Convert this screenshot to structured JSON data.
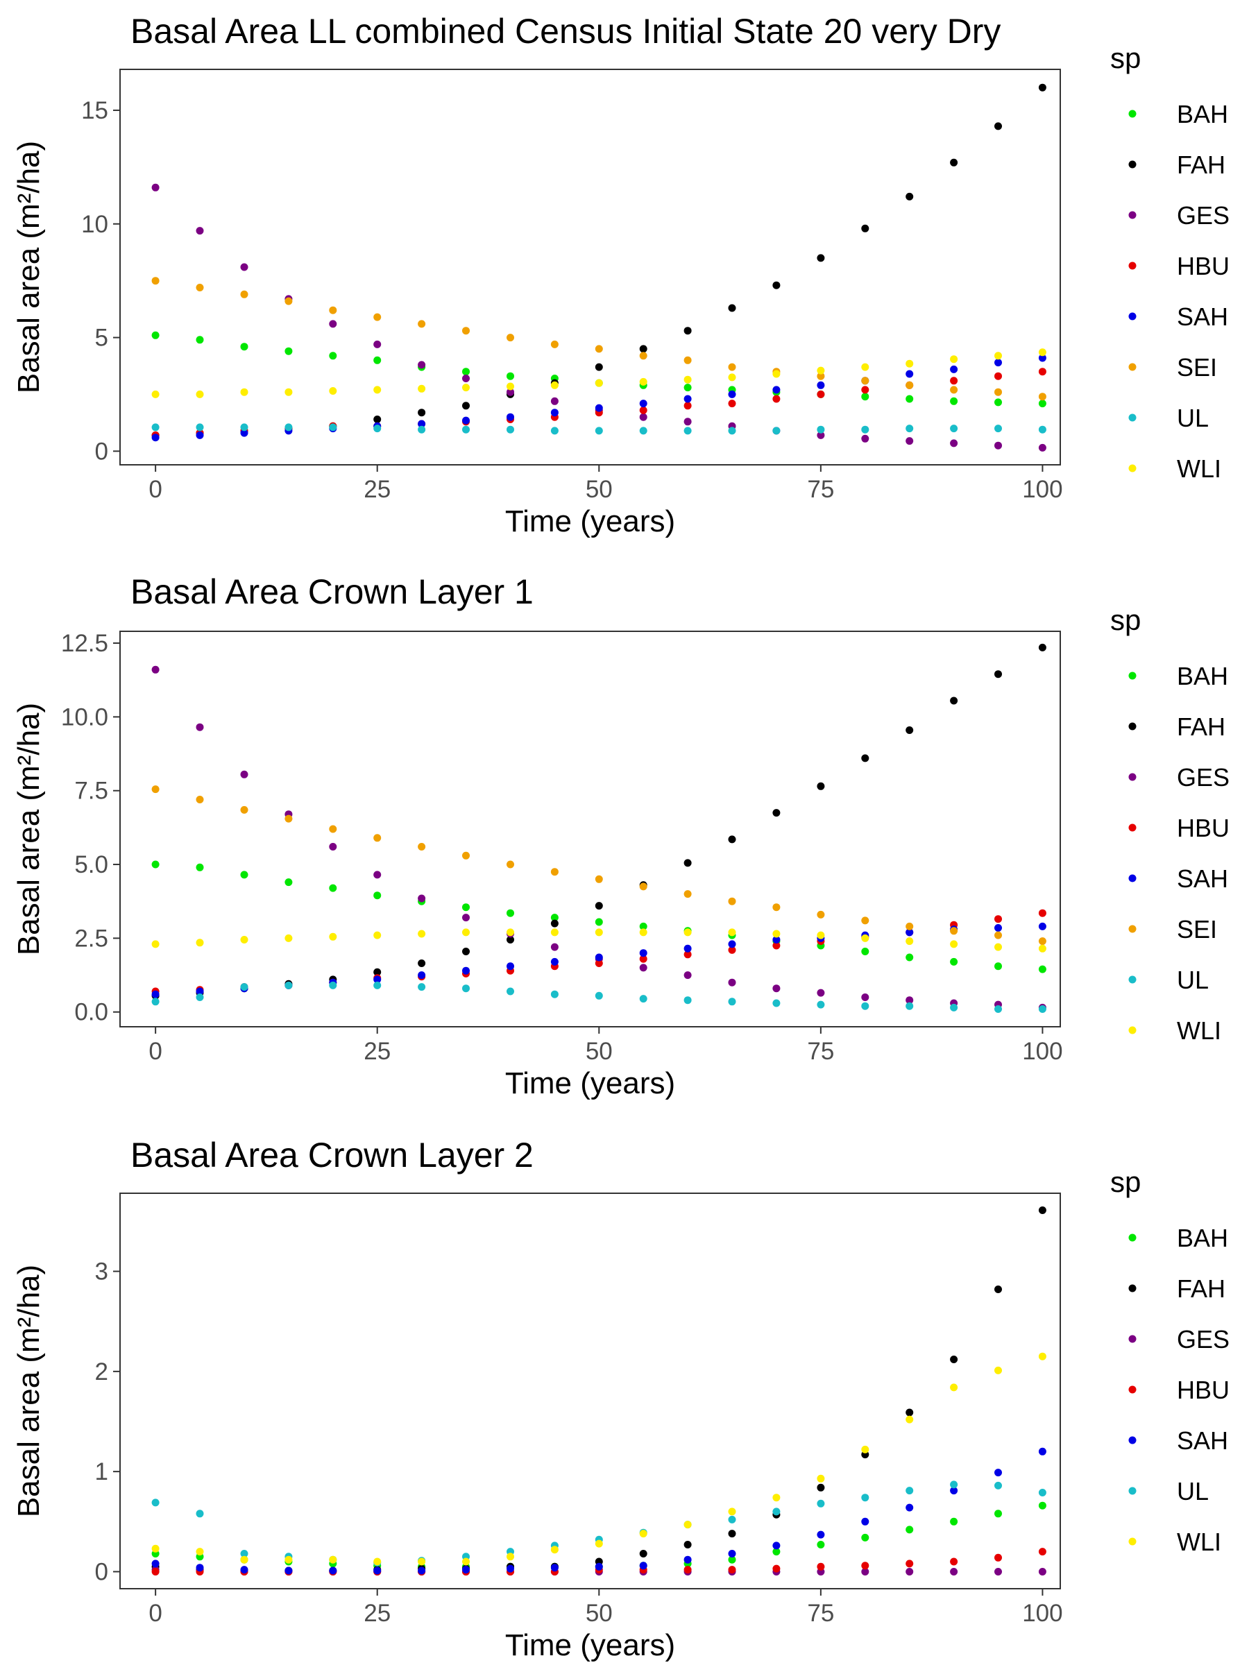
{
  "species": [
    "BAH",
    "FAH",
    "GES",
    "HBU",
    "SAH",
    "SEI",
    "UL",
    "WLI"
  ],
  "colors": {
    "BAH": "#00e600",
    "FAH": "#000000",
    "GES": "#7b0083",
    "HBU": "#e60000",
    "SAH": "#0000e6",
    "SEI": "#f0a000",
    "UL": "#19bdc9",
    "WLI": "#ffee00"
  },
  "chart_data": [
    {
      "type": "scatter",
      "title": "Basal Area LL combined Census Initial State 20 very Dry",
      "xlabel": "Time (years)",
      "ylabel": "Basal area (m²/ha)",
      "legend_title": "sp",
      "legend_position": "right",
      "grid": false,
      "xlim": [
        -4,
        102
      ],
      "ylim": [
        -0.6,
        16.8
      ],
      "xticks": [
        0,
        25,
        50,
        75,
        100
      ],
      "yticks": [
        0,
        5,
        10,
        15
      ],
      "xtick_labels": [
        "0",
        "25",
        "50",
        "75",
        "100"
      ],
      "ytick_labels": [
        "0",
        "5",
        "10",
        "15"
      ],
      "x": [
        0,
        5,
        10,
        15,
        20,
        25,
        30,
        35,
        40,
        45,
        50,
        55,
        60,
        65,
        70,
        75,
        80,
        85,
        90,
        95,
        100
      ],
      "series": [
        {
          "name": "BAH",
          "values": [
            5.1,
            4.9,
            4.6,
            4.4,
            4.2,
            4.0,
            3.7,
            3.5,
            3.3,
            3.2,
            3.0,
            2.9,
            2.8,
            2.7,
            2.6,
            2.5,
            2.4,
            2.3,
            2.2,
            2.15,
            2.1
          ]
        },
        {
          "name": "FAH",
          "values": [
            0.7,
            0.8,
            0.9,
            1.0,
            1.1,
            1.4,
            1.7,
            2.0,
            2.5,
            3.0,
            3.7,
            4.5,
            5.3,
            6.3,
            7.3,
            8.5,
            9.8,
            11.2,
            12.7,
            14.3,
            16.0
          ]
        },
        {
          "name": "GES",
          "values": [
            11.6,
            9.7,
            8.1,
            6.7,
            5.6,
            4.7,
            3.8,
            3.2,
            2.6,
            2.2,
            1.8,
            1.5,
            1.3,
            1.1,
            0.9,
            0.7,
            0.55,
            0.45,
            0.35,
            0.25,
            0.15
          ]
        },
        {
          "name": "HBU",
          "values": [
            0.7,
            0.8,
            0.9,
            1.0,
            1.1,
            1.1,
            1.2,
            1.3,
            1.4,
            1.5,
            1.7,
            1.8,
            2.0,
            2.1,
            2.3,
            2.5,
            2.7,
            2.9,
            3.1,
            3.3,
            3.5
          ]
        },
        {
          "name": "SAH",
          "values": [
            0.6,
            0.7,
            0.8,
            0.9,
            1.0,
            1.1,
            1.2,
            1.35,
            1.5,
            1.7,
            1.9,
            2.1,
            2.3,
            2.5,
            2.7,
            2.9,
            3.1,
            3.4,
            3.6,
            3.9,
            4.1
          ]
        },
        {
          "name": "SEI",
          "values": [
            7.5,
            7.2,
            6.9,
            6.6,
            6.2,
            5.9,
            5.6,
            5.3,
            5.0,
            4.7,
            4.5,
            4.2,
            4.0,
            3.7,
            3.5,
            3.3,
            3.1,
            2.9,
            2.7,
            2.6,
            2.4
          ]
        },
        {
          "name": "UL",
          "values": [
            1.05,
            1.05,
            1.05,
            1.05,
            1.05,
            1.0,
            0.95,
            0.95,
            0.95,
            0.9,
            0.9,
            0.9,
            0.9,
            0.9,
            0.9,
            0.95,
            0.95,
            1.0,
            1.0,
            1.0,
            0.95
          ]
        },
        {
          "name": "WLI",
          "values": [
            2.5,
            2.5,
            2.6,
            2.6,
            2.65,
            2.7,
            2.75,
            2.8,
            2.85,
            2.9,
            3.0,
            3.05,
            3.15,
            3.25,
            3.4,
            3.55,
            3.7,
            3.85,
            4.05,
            4.2,
            4.35
          ]
        }
      ]
    },
    {
      "type": "scatter",
      "title": "Basal Area Crown Layer 1",
      "xlabel": "Time (years)",
      "ylabel": "Basal area (m²/ha)",
      "legend_title": "sp",
      "legend_position": "right",
      "grid": false,
      "xlim": [
        -4,
        102
      ],
      "ylim": [
        -0.5,
        12.9
      ],
      "xticks": [
        0,
        25,
        50,
        75,
        100
      ],
      "yticks": [
        0,
        2.5,
        5,
        7.5,
        10,
        12.5
      ],
      "xtick_labels": [
        "0",
        "25",
        "50",
        "75",
        "100"
      ],
      "ytick_labels": [
        "0.0",
        "2.5",
        "5.0",
        "7.5",
        "10.0",
        "12.5"
      ],
      "x": [
        0,
        5,
        10,
        15,
        20,
        25,
        30,
        35,
        40,
        45,
        50,
        55,
        60,
        65,
        70,
        75,
        80,
        85,
        90,
        95,
        100
      ],
      "series": [
        {
          "name": "BAH",
          "values": [
            5.0,
            4.9,
            4.65,
            4.4,
            4.2,
            3.95,
            3.75,
            3.55,
            3.35,
            3.2,
            3.05,
            2.9,
            2.75,
            2.6,
            2.4,
            2.25,
            2.05,
            1.85,
            1.7,
            1.55,
            1.45
          ]
        },
        {
          "name": "FAH",
          "values": [
            0.55,
            0.65,
            0.8,
            0.95,
            1.1,
            1.35,
            1.65,
            2.05,
            2.45,
            3.0,
            3.6,
            4.3,
            5.05,
            5.85,
            6.75,
            7.65,
            8.6,
            9.55,
            10.55,
            11.45,
            12.35
          ]
        },
        {
          "name": "GES",
          "values": [
            11.6,
            9.65,
            8.05,
            6.7,
            5.6,
            4.65,
            3.85,
            3.2,
            2.65,
            2.2,
            1.8,
            1.5,
            1.25,
            1.0,
            0.8,
            0.65,
            0.5,
            0.4,
            0.3,
            0.25,
            0.15
          ]
        },
        {
          "name": "HBU",
          "values": [
            0.7,
            0.75,
            0.85,
            0.9,
            1.0,
            1.15,
            1.2,
            1.3,
            1.4,
            1.55,
            1.65,
            1.8,
            1.95,
            2.1,
            2.25,
            2.4,
            2.55,
            2.7,
            2.95,
            3.15,
            3.35
          ]
        },
        {
          "name": "SAH",
          "values": [
            0.6,
            0.7,
            0.8,
            0.9,
            1.0,
            1.1,
            1.25,
            1.4,
            1.55,
            1.7,
            1.85,
            2.0,
            2.15,
            2.3,
            2.45,
            2.5,
            2.6,
            2.7,
            2.8,
            2.85,
            2.9
          ]
        },
        {
          "name": "SEI",
          "values": [
            7.55,
            7.2,
            6.85,
            6.55,
            6.2,
            5.9,
            5.6,
            5.3,
            5.0,
            4.75,
            4.5,
            4.25,
            4.0,
            3.75,
            3.55,
            3.3,
            3.1,
            2.9,
            2.75,
            2.6,
            2.4
          ]
        },
        {
          "name": "UL",
          "values": [
            0.35,
            0.5,
            0.85,
            0.9,
            0.9,
            0.9,
            0.85,
            0.8,
            0.7,
            0.6,
            0.55,
            0.45,
            0.4,
            0.35,
            0.3,
            0.25,
            0.2,
            0.2,
            0.15,
            0.1,
            0.1
          ]
        },
        {
          "name": "WLI",
          "values": [
            2.3,
            2.35,
            2.45,
            2.5,
            2.55,
            2.6,
            2.65,
            2.7,
            2.7,
            2.7,
            2.7,
            2.7,
            2.7,
            2.7,
            2.65,
            2.6,
            2.5,
            2.4,
            2.3,
            2.2,
            2.15
          ]
        }
      ]
    },
    {
      "type": "scatter",
      "title": "Basal Area Crown Layer 2",
      "xlabel": "Time (years)",
      "ylabel": "Basal area (m²/ha)",
      "legend_title": "sp",
      "legend_position": "right",
      "grid": false,
      "xlim": [
        -4,
        102
      ],
      "ylim": [
        -0.17,
        3.78
      ],
      "xticks": [
        0,
        25,
        50,
        75,
        100
      ],
      "yticks": [
        0,
        1,
        2,
        3
      ],
      "xtick_labels": [
        "0",
        "25",
        "50",
        "75",
        "100"
      ],
      "ytick_labels": [
        "0",
        "1",
        "2",
        "3"
      ],
      "x": [
        0,
        5,
        10,
        15,
        20,
        25,
        30,
        35,
        40,
        45,
        50,
        55,
        60,
        65,
        70,
        75,
        80,
        85,
        90,
        95,
        100
      ],
      "series": [
        {
          "name": "BAH",
          "values": [
            0.18,
            0.15,
            0.12,
            0.1,
            0.08,
            0.06,
            0.05,
            0.05,
            0.05,
            0.05,
            0.05,
            0.06,
            0.08,
            0.12,
            0.2,
            0.27,
            0.34,
            0.42,
            0.5,
            0.58,
            0.66
          ]
        },
        {
          "name": "FAH",
          "values": [
            0.05,
            0.02,
            0.01,
            0.01,
            0.01,
            0.02,
            0.03,
            0.03,
            0.05,
            0.05,
            0.1,
            0.18,
            0.27,
            0.38,
            0.57,
            0.84,
            1.17,
            1.59,
            2.12,
            2.82,
            3.61
          ]
        },
        {
          "name": "GES",
          "values": [
            0.02,
            0.01,
            0.0,
            0.0,
            0.0,
            0.0,
            0.0,
            0.0,
            0.0,
            0.0,
            0.0,
            0.0,
            0.0,
            0.0,
            0.0,
            0.0,
            0.0,
            0.0,
            0.0,
            0.0,
            0.0
          ]
        },
        {
          "name": "HBU",
          "values": [
            0.0,
            0.0,
            0.0,
            0.0,
            0.0,
            0.0,
            0.0,
            0.0,
            0.0,
            0.0,
            0.02,
            0.02,
            0.02,
            0.02,
            0.03,
            0.05,
            0.06,
            0.08,
            0.1,
            0.14,
            0.2
          ]
        },
        {
          "name": "SAH",
          "values": [
            0.08,
            0.04,
            0.02,
            0.01,
            0.01,
            0.01,
            0.01,
            0.02,
            0.03,
            0.04,
            0.05,
            0.06,
            0.12,
            0.18,
            0.26,
            0.37,
            0.5,
            0.64,
            0.81,
            0.99,
            1.2
          ]
        },
        {
          "name": "UL",
          "values": [
            0.69,
            0.58,
            0.18,
            0.15,
            0.12,
            0.09,
            0.11,
            0.15,
            0.2,
            0.26,
            0.32,
            0.39,
            0.47,
            0.52,
            0.6,
            0.68,
            0.74,
            0.81,
            0.87,
            0.86,
            0.79
          ]
        },
        {
          "name": "WLI",
          "values": [
            0.23,
            0.2,
            0.12,
            0.12,
            0.12,
            0.1,
            0.1,
            0.1,
            0.15,
            0.22,
            0.28,
            0.38,
            0.47,
            0.6,
            0.74,
            0.93,
            1.22,
            1.52,
            1.84,
            2.01,
            2.15
          ]
        }
      ]
    }
  ]
}
